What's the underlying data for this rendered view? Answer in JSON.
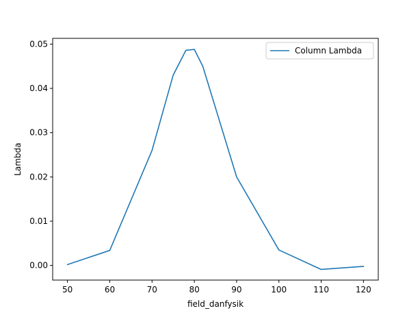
{
  "chart_data": {
    "type": "line",
    "xlabel": "field_danfysik",
    "ylabel": "Lambda",
    "xlim": [
      46.5,
      123.5
    ],
    "ylim": [
      -0.0033,
      0.0513
    ],
    "xticks": [
      50,
      60,
      70,
      80,
      90,
      100,
      110,
      120
    ],
    "yticks": [
      0.0,
      0.01,
      0.02,
      0.03,
      0.04,
      0.05
    ],
    "xtick_labels": [
      "50",
      "60",
      "70",
      "80",
      "90",
      "100",
      "110",
      "120"
    ],
    "ytick_labels": [
      "0.00",
      "0.01",
      "0.02",
      "0.03",
      "0.04",
      "0.05"
    ],
    "grid": false,
    "legend_position": "top-right",
    "series": [
      {
        "name": "Column Lambda",
        "color": "#1f77b4",
        "x": [
          50,
          60,
          70,
          75,
          78,
          80,
          82,
          90,
          100,
          110,
          120
        ],
        "y": [
          0.0002,
          0.0034,
          0.026,
          0.043,
          0.0486,
          0.0488,
          0.045,
          0.02,
          0.0035,
          -0.0009,
          -0.0002
        ]
      }
    ]
  }
}
